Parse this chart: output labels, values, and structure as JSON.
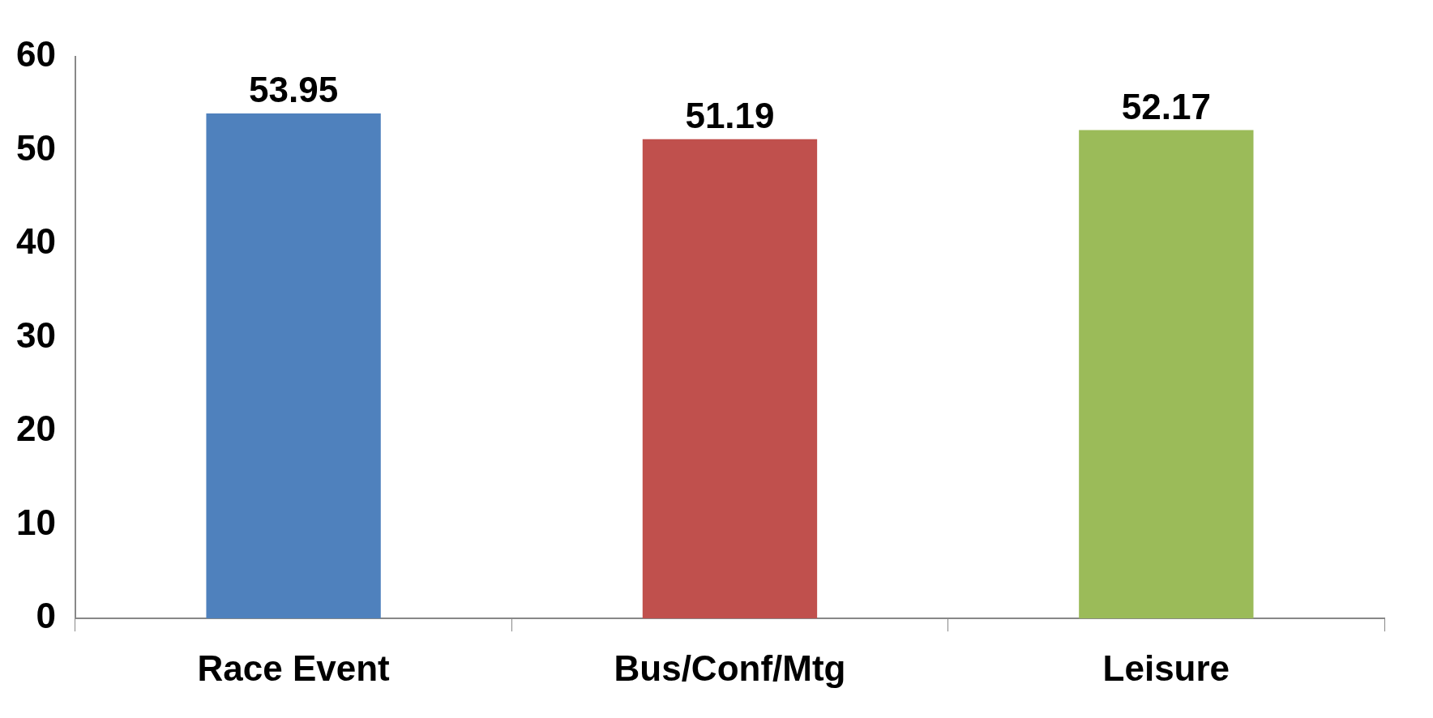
{
  "chart_data": {
    "type": "bar",
    "categories": [
      "Race Event",
      "Bus/Conf/Mtg",
      "Leisure"
    ],
    "values": [
      53.95,
      51.19,
      52.17
    ],
    "colors": [
      "#4f81bd",
      "#c0504d",
      "#9bbb59"
    ],
    "ylim": [
      0,
      60
    ],
    "yticks": [
      0,
      10,
      20,
      30,
      40,
      50,
      60
    ],
    "grid": false,
    "legend": false,
    "data_labels": true
  }
}
